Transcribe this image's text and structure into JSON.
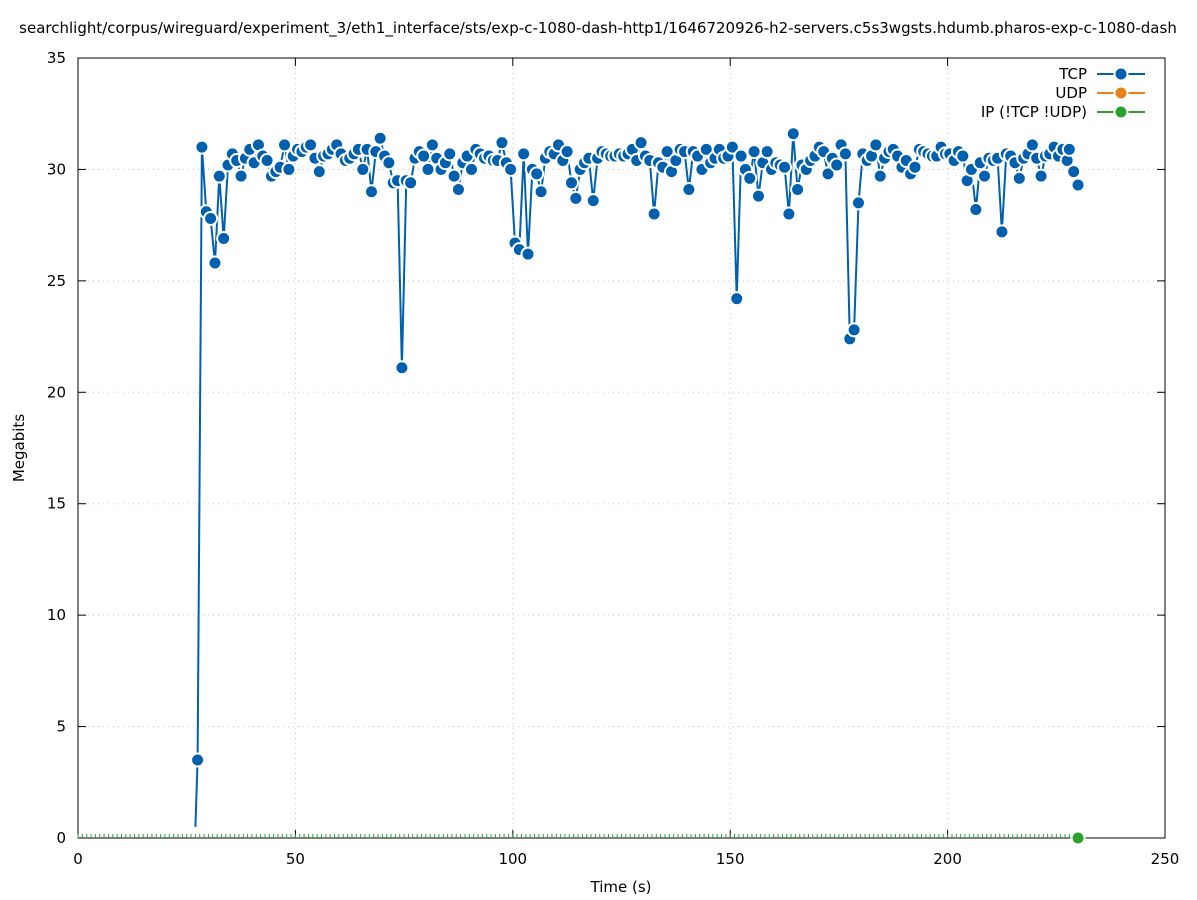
{
  "chart_data": {
    "type": "line",
    "title": "searchlight/corpus/wireguard/experiment_3/eth1_interface/sts/exp-c-1080-dash-http1/1646720926-h2-servers.c5s3wgsts.hdumb.pharos-exp-c-1080-dash",
    "xlabel": "Time (s)",
    "ylabel": "Megabits",
    "xlim": [
      0,
      250
    ],
    "ylim": [
      0,
      35
    ],
    "xticks": [
      0,
      50,
      100,
      150,
      200,
      250
    ],
    "yticks": [
      0,
      5,
      10,
      15,
      20,
      25,
      30,
      35
    ],
    "grid": true,
    "legend_position": "top-right",
    "series": [
      {
        "name": "TCP",
        "color": "#0060ad",
        "points": [
          [
            27,
            0.5
          ],
          [
            27.5,
            3.5
          ],
          [
            28.5,
            31.0
          ],
          [
            29.5,
            28.1
          ],
          [
            30.5,
            27.8
          ],
          [
            31.5,
            25.8
          ],
          [
            32.5,
            29.7
          ],
          [
            33.5,
            26.9
          ],
          [
            34.5,
            30.2
          ],
          [
            35.5,
            30.7
          ],
          [
            36.5,
            30.4
          ],
          [
            37.5,
            29.7
          ],
          [
            38.5,
            30.5
          ],
          [
            39.5,
            30.9
          ],
          [
            40.5,
            30.3
          ],
          [
            41.5,
            31.1
          ],
          [
            42.5,
            30.6
          ],
          [
            43.5,
            30.4
          ],
          [
            44.5,
            29.7
          ],
          [
            45.5,
            29.9
          ],
          [
            46.5,
            30.1
          ],
          [
            47.5,
            31.1
          ],
          [
            48.5,
            30.0
          ],
          [
            49.5,
            30.6
          ],
          [
            50.5,
            30.9
          ],
          [
            51.5,
            30.8
          ],
          [
            52.5,
            31.0
          ],
          [
            53.5,
            31.1
          ],
          [
            54.5,
            30.5
          ],
          [
            55.5,
            29.9
          ],
          [
            56.5,
            30.6
          ],
          [
            57.5,
            30.7
          ],
          [
            58.5,
            30.9
          ],
          [
            59.5,
            31.1
          ],
          [
            60.5,
            30.7
          ],
          [
            61.5,
            30.4
          ],
          [
            62.5,
            30.5
          ],
          [
            63.5,
            30.7
          ],
          [
            64.5,
            30.9
          ],
          [
            65.5,
            30.0
          ],
          [
            66.5,
            30.9
          ],
          [
            67.5,
            29.0
          ],
          [
            68.5,
            30.8
          ],
          [
            69.5,
            31.4
          ],
          [
            70.5,
            30.6
          ],
          [
            71.5,
            30.3
          ],
          [
            72.5,
            29.4
          ],
          [
            73.5,
            29.5
          ],
          [
            74.5,
            21.1
          ],
          [
            75.5,
            29.5
          ],
          [
            76.5,
            29.4
          ],
          [
            77.5,
            30.5
          ],
          [
            78.5,
            30.8
          ],
          [
            79.5,
            30.6
          ],
          [
            80.5,
            30.0
          ],
          [
            81.5,
            31.1
          ],
          [
            82.5,
            30.5
          ],
          [
            83.5,
            30.0
          ],
          [
            84.5,
            30.3
          ],
          [
            85.5,
            30.7
          ],
          [
            86.5,
            29.7
          ],
          [
            87.5,
            29.1
          ],
          [
            88.5,
            30.3
          ],
          [
            89.5,
            30.6
          ],
          [
            90.5,
            30.0
          ],
          [
            91.5,
            30.9
          ],
          [
            92.5,
            30.7
          ],
          [
            93.5,
            30.5
          ],
          [
            94.5,
            30.6
          ],
          [
            95.5,
            30.4
          ],
          [
            96.5,
            30.4
          ],
          [
            97.5,
            31.2
          ],
          [
            98.5,
            30.3
          ],
          [
            99.5,
            30.0
          ],
          [
            100.5,
            26.7
          ],
          [
            101.5,
            26.4
          ],
          [
            102.5,
            30.7
          ],
          [
            103.5,
            26.2
          ],
          [
            104.5,
            30.0
          ],
          [
            105.5,
            29.8
          ],
          [
            106.5,
            29.0
          ],
          [
            107.5,
            30.5
          ],
          [
            108.5,
            30.8
          ],
          [
            109.5,
            30.7
          ],
          [
            110.5,
            31.1
          ],
          [
            111.5,
            30.4
          ],
          [
            112.5,
            30.8
          ],
          [
            113.5,
            29.4
          ],
          [
            114.5,
            28.7
          ],
          [
            115.5,
            30.0
          ],
          [
            116.5,
            30.3
          ],
          [
            117.5,
            30.5
          ],
          [
            118.5,
            28.6
          ],
          [
            119.5,
            30.5
          ],
          [
            120.5,
            30.8
          ],
          [
            121.5,
            30.7
          ],
          [
            122.5,
            30.6
          ],
          [
            123.5,
            30.6
          ],
          [
            124.5,
            30.7
          ],
          [
            125.5,
            30.6
          ],
          [
            126.5,
            30.7
          ],
          [
            127.5,
            30.9
          ],
          [
            128.5,
            30.4
          ],
          [
            129.5,
            31.2
          ],
          [
            130.5,
            30.6
          ],
          [
            131.5,
            30.4
          ],
          [
            132.5,
            28.0
          ],
          [
            133.5,
            30.3
          ],
          [
            134.5,
            30.1
          ],
          [
            135.5,
            30.8
          ],
          [
            136.5,
            29.9
          ],
          [
            137.5,
            30.4
          ],
          [
            138.5,
            30.9
          ],
          [
            139.5,
            30.8
          ],
          [
            140.5,
            29.1
          ],
          [
            141.5,
            30.8
          ],
          [
            142.5,
            30.6
          ],
          [
            143.5,
            30.0
          ],
          [
            144.5,
            30.9
          ],
          [
            145.5,
            30.3
          ],
          [
            146.5,
            30.5
          ],
          [
            147.5,
            30.9
          ],
          [
            148.5,
            30.5
          ],
          [
            149.5,
            30.6
          ],
          [
            150.5,
            31.0
          ],
          [
            151.5,
            24.2
          ],
          [
            152.5,
            30.6
          ],
          [
            153.5,
            30.0
          ],
          [
            154.5,
            29.6
          ],
          [
            155.5,
            30.8
          ],
          [
            156.5,
            28.8
          ],
          [
            157.5,
            30.3
          ],
          [
            158.5,
            30.8
          ],
          [
            159.5,
            30.0
          ],
          [
            160.5,
            30.3
          ],
          [
            161.5,
            30.2
          ],
          [
            162.5,
            30.1
          ],
          [
            163.5,
            28.0
          ],
          [
            164.5,
            31.6
          ],
          [
            165.5,
            29.1
          ],
          [
            166.5,
            30.2
          ],
          [
            167.5,
            30.0
          ],
          [
            168.5,
            30.4
          ],
          [
            169.5,
            30.6
          ],
          [
            170.5,
            31.0
          ],
          [
            171.5,
            30.8
          ],
          [
            172.5,
            29.8
          ],
          [
            173.5,
            30.5
          ],
          [
            174.5,
            30.2
          ],
          [
            175.5,
            31.1
          ],
          [
            176.5,
            30.7
          ],
          [
            177.5,
            22.4
          ],
          [
            178.5,
            22.8
          ],
          [
            179.5,
            28.5
          ],
          [
            180.5,
            30.7
          ],
          [
            181.5,
            30.4
          ],
          [
            182.5,
            30.6
          ],
          [
            183.5,
            31.1
          ],
          [
            184.5,
            29.7
          ],
          [
            185.5,
            30.5
          ],
          [
            186.5,
            30.8
          ],
          [
            187.5,
            30.9
          ],
          [
            188.5,
            30.6
          ],
          [
            189.5,
            30.1
          ],
          [
            190.5,
            30.4
          ],
          [
            191.5,
            29.8
          ],
          [
            192.5,
            30.1
          ],
          [
            193.5,
            30.9
          ],
          [
            194.5,
            30.8
          ],
          [
            195.5,
            30.7
          ],
          [
            196.5,
            30.6
          ],
          [
            197.5,
            30.6
          ],
          [
            198.5,
            31.0
          ],
          [
            199.5,
            30.7
          ],
          [
            200.5,
            30.7
          ],
          [
            201.5,
            30.4
          ],
          [
            202.5,
            30.8
          ],
          [
            203.5,
            30.6
          ],
          [
            204.5,
            29.5
          ],
          [
            205.5,
            30.0
          ],
          [
            206.5,
            28.2
          ],
          [
            207.5,
            30.3
          ],
          [
            208.5,
            29.7
          ],
          [
            209.5,
            30.5
          ],
          [
            210.5,
            30.4
          ],
          [
            211.5,
            30.5
          ],
          [
            212.5,
            27.2
          ],
          [
            213.5,
            30.7
          ],
          [
            214.5,
            30.6
          ],
          [
            215.5,
            30.3
          ],
          [
            216.5,
            29.6
          ],
          [
            217.5,
            30.5
          ],
          [
            218.5,
            30.7
          ],
          [
            219.5,
            31.1
          ],
          [
            220.5,
            30.5
          ],
          [
            221.5,
            29.7
          ],
          [
            222.5,
            30.6
          ],
          [
            223.5,
            30.7
          ],
          [
            224.5,
            31.0
          ],
          [
            225.5,
            30.6
          ],
          [
            226.5,
            30.9
          ],
          [
            227.5,
            30.4
          ],
          [
            228.0,
            30.9
          ],
          [
            229.0,
            29.9
          ],
          [
            230.0,
            29.3
          ]
        ]
      },
      {
        "name": "UDP",
        "color": "#e8821a",
        "points": []
      },
      {
        "name": "IP (!TCP  !UDP)",
        "color": "#2ca02c",
        "points": [
          [
            230,
            0
          ]
        ]
      }
    ]
  }
}
